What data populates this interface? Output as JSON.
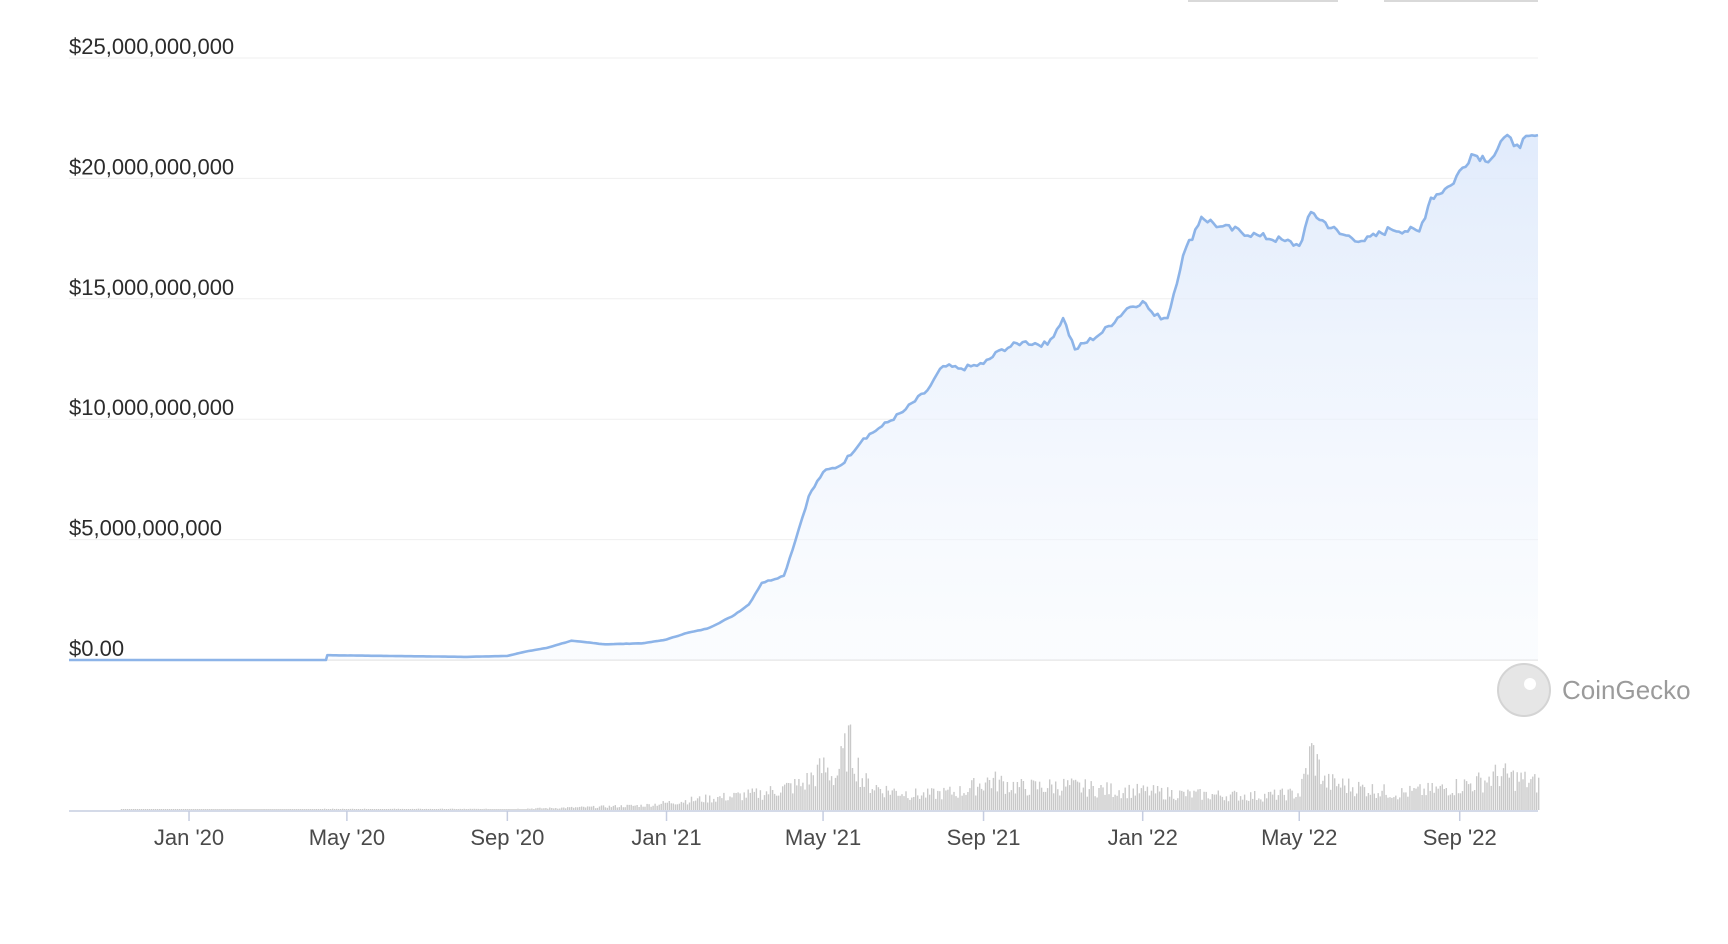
{
  "chart_data": {
    "type": "area",
    "title": "",
    "xlabel": "",
    "ylabel": "",
    "ylim": [
      0,
      25000000000
    ],
    "y_ticks": [
      {
        "value": 0,
        "label": "$0.00"
      },
      {
        "value": 5000000000,
        "label": "$5,000,000,000"
      },
      {
        "value": 10000000000,
        "label": "$10,000,000,000"
      },
      {
        "value": 15000000000,
        "label": "$15,000,000,000"
      },
      {
        "value": 20000000000,
        "label": "$20,000,000,000"
      },
      {
        "value": 25000000000,
        "label": "$25,000,000,000"
      }
    ],
    "x_range": [
      "2019-10-01",
      "2022-10-31"
    ],
    "x_ticks": [
      {
        "date": "2020-01-01",
        "label": "Jan '20"
      },
      {
        "date": "2020-05-01",
        "label": "May '20"
      },
      {
        "date": "2020-09-01",
        "label": "Sep '20"
      },
      {
        "date": "2021-01-01",
        "label": "Jan '21"
      },
      {
        "date": "2021-05-01",
        "label": "May '21"
      },
      {
        "date": "2021-09-01",
        "label": "Sep '21"
      },
      {
        "date": "2022-01-01",
        "label": "Jan '22"
      },
      {
        "date": "2022-05-01",
        "label": "May '22"
      },
      {
        "date": "2022-09-01",
        "label": "Sep '22"
      }
    ],
    "grid": true,
    "series": [
      {
        "color": "#8db4e8",
        "points": [
          [
            "2019-10-01",
            0
          ],
          [
            "2020-04-15",
            0
          ],
          [
            "2020-04-16",
            200000000
          ],
          [
            "2020-05-15",
            180000000
          ],
          [
            "2020-07-01",
            150000000
          ],
          [
            "2020-08-01",
            130000000
          ],
          [
            "2020-09-01",
            170000000
          ],
          [
            "2020-09-15",
            350000000
          ],
          [
            "2020-10-01",
            500000000
          ],
          [
            "2020-10-20",
            800000000
          ],
          [
            "2020-11-15",
            650000000
          ],
          [
            "2020-12-15",
            700000000
          ],
          [
            "2021-01-01",
            850000000
          ],
          [
            "2021-01-15",
            1100000000
          ],
          [
            "2021-02-01",
            1300000000
          ],
          [
            "2021-02-20",
            1800000000
          ],
          [
            "2021-03-05",
            2300000000
          ],
          [
            "2021-03-15",
            3200000000
          ],
          [
            "2021-04-01",
            3500000000
          ],
          [
            "2021-04-10",
            5000000000
          ],
          [
            "2021-04-20",
            6800000000
          ],
          [
            "2021-05-01",
            7800000000
          ],
          [
            "2021-05-15",
            8100000000
          ],
          [
            "2021-06-01",
            9200000000
          ],
          [
            "2021-06-15",
            9700000000
          ],
          [
            "2021-07-01",
            10300000000
          ],
          [
            "2021-07-20",
            11200000000
          ],
          [
            "2021-08-01",
            12200000000
          ],
          [
            "2021-08-15",
            12100000000
          ],
          [
            "2021-09-01",
            12300000000
          ],
          [
            "2021-09-15",
            12900000000
          ],
          [
            "2021-10-01",
            13200000000
          ],
          [
            "2021-10-20",
            13100000000
          ],
          [
            "2021-11-01",
            14200000000
          ],
          [
            "2021-11-10",
            12900000000
          ],
          [
            "2021-12-01",
            13600000000
          ],
          [
            "2021-12-20",
            14600000000
          ],
          [
            "2022-01-01",
            14900000000
          ],
          [
            "2022-01-10",
            14300000000
          ],
          [
            "2022-01-20",
            14200000000
          ],
          [
            "2022-02-01",
            16800000000
          ],
          [
            "2022-02-15",
            18400000000
          ],
          [
            "2022-03-01",
            18000000000
          ],
          [
            "2022-04-01",
            17600000000
          ],
          [
            "2022-04-20",
            17400000000
          ],
          [
            "2022-05-01",
            17200000000
          ],
          [
            "2022-05-10",
            18600000000
          ],
          [
            "2022-06-01",
            17700000000
          ],
          [
            "2022-06-20",
            17400000000
          ],
          [
            "2022-07-10",
            17900000000
          ],
          [
            "2022-08-01",
            17800000000
          ],
          [
            "2022-08-10",
            19200000000
          ],
          [
            "2022-08-25",
            19700000000
          ],
          [
            "2022-09-10",
            21000000000
          ],
          [
            "2022-09-25",
            20800000000
          ],
          [
            "2022-10-05",
            21700000000
          ],
          [
            "2022-10-15",
            21400000000
          ],
          [
            "2022-10-31",
            21800000000
          ]
        ]
      }
    ],
    "volume_series": {
      "color": "#c9c9c9",
      "points": [
        [
          "2019-10-01",
          0
        ],
        [
          "2020-04-15",
          1
        ],
        [
          "2020-09-01",
          1
        ],
        [
          "2020-11-01",
          3
        ],
        [
          "2020-12-15",
          5
        ],
        [
          "2021-01-15",
          10
        ],
        [
          "2021-02-15",
          14
        ],
        [
          "2021-03-15",
          18
        ],
        [
          "2021-04-15",
          28
        ],
        [
          "2021-05-01",
          45
        ],
        [
          "2021-05-10",
          35
        ],
        [
          "2021-05-20",
          72
        ],
        [
          "2021-06-01",
          30
        ],
        [
          "2021-06-15",
          22
        ],
        [
          "2021-07-15",
          16
        ],
        [
          "2021-08-15",
          20
        ],
        [
          "2021-09-05",
          32
        ],
        [
          "2021-10-01",
          24
        ],
        [
          "2021-11-01",
          26
        ],
        [
          "2021-12-01",
          22
        ],
        [
          "2022-01-01",
          20
        ],
        [
          "2022-02-01",
          17
        ],
        [
          "2022-03-01",
          16
        ],
        [
          "2022-04-01",
          15
        ],
        [
          "2022-05-01",
          18
        ],
        [
          "2022-05-10",
          64
        ],
        [
          "2022-05-20",
          30
        ],
        [
          "2022-06-15",
          24
        ],
        [
          "2022-07-15",
          18
        ],
        [
          "2022-08-15",
          22
        ],
        [
          "2022-09-15",
          30
        ],
        [
          "2022-10-01",
          38
        ],
        [
          "2022-10-31",
          28
        ]
      ]
    },
    "watermark": "CoinGecko"
  }
}
